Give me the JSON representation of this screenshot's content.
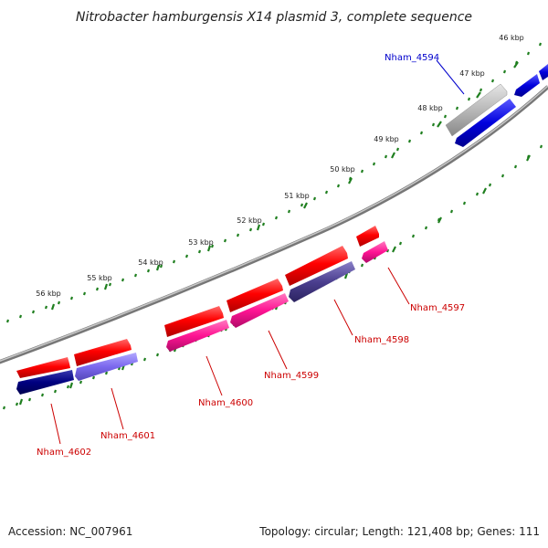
{
  "title": "Nitrobacter hamburgensis X14 plasmid 3, complete sequence",
  "scale_labels": [
    "46 kbp",
    "47 kbp",
    "48 kbp",
    "49 kbp",
    "50 kbp",
    "51 kbp",
    "52 kbp",
    "53 kbp",
    "54 kbp",
    "55 kbp",
    "56 kbp"
  ],
  "gene_labels": [
    {
      "name": "Nham_4594",
      "color": "#0000cc"
    },
    {
      "name": "Nham_4597",
      "color": "#cc0000"
    },
    {
      "name": "Nham_4598",
      "color": "#cc0000"
    },
    {
      "name": "Nham_4599",
      "color": "#cc0000"
    },
    {
      "name": "Nham_4600",
      "color": "#cc0000"
    },
    {
      "name": "Nham_4601",
      "color": "#cc0000"
    },
    {
      "name": "Nham_4602",
      "color": "#cc0000"
    }
  ],
  "footer": {
    "accession": "Accession: NC_007961",
    "summary": "Topology: circular; Length: 121,408 bp; Genes: 111"
  },
  "colors": {
    "backbone": "#8c8c8c",
    "tick_marks": "#1f7f1f",
    "forward_gene": "#ff0000",
    "reverse_pink": "#ff1493",
    "reverse_purple": "#4b3f8f",
    "reverse_navy": "#000080",
    "reverse_blue": "#0000dd",
    "reverse_lavender": "#7b68ee",
    "grey_gene": "#b0b0b0"
  }
}
